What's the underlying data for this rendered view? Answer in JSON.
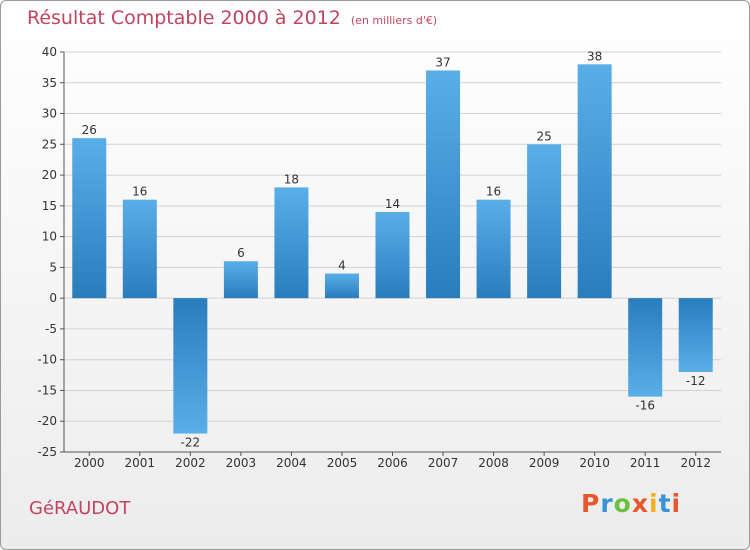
{
  "header": {
    "title": "Résultat Comptable 2000 à 2012",
    "unit": "(en milliers d'€)"
  },
  "footer": {
    "commune": "GéRAUDOT",
    "brand": "Proxiti"
  },
  "colors": {
    "title": "#c0455f",
    "bar_light": "#5aaee8",
    "bar_dark": "#2a7dbd",
    "brand_letters": [
      "#e8562a",
      "#3a93d6",
      "#6cbf3f",
      "#e8562a",
      "#f0b020",
      "#3a93d6",
      "#e8562a"
    ]
  },
  "chart_data": {
    "type": "bar",
    "title": "Résultat Comptable 2000 à 2012",
    "subtitle": "(en milliers d'€)",
    "xlabel": "",
    "ylabel": "",
    "categories": [
      "2000",
      "2001",
      "2002",
      "2003",
      "2004",
      "2005",
      "2006",
      "2007",
      "2008",
      "2009",
      "2010",
      "2011",
      "2012"
    ],
    "values": [
      26,
      16,
      -22,
      6,
      18,
      4,
      14,
      37,
      16,
      25,
      38,
      -16,
      -12
    ],
    "value_labels": [
      "26",
      "16",
      "-22",
      "6",
      "18",
      "4",
      "14",
      "37",
      "16",
      "25",
      "38",
      "-16",
      "-12"
    ],
    "ylim": [
      -25,
      40
    ],
    "yticks": [
      40,
      35,
      30,
      25,
      20,
      15,
      10,
      5,
      0,
      -5,
      -10,
      -15,
      -20,
      -25
    ],
    "ytick_labels": [
      "40",
      "35",
      "30",
      "25",
      "20",
      "15",
      "10",
      "5",
      "0",
      "-5",
      "-10",
      "-15",
      "-20",
      "-25"
    ],
    "grid": true,
    "legend": "none"
  }
}
